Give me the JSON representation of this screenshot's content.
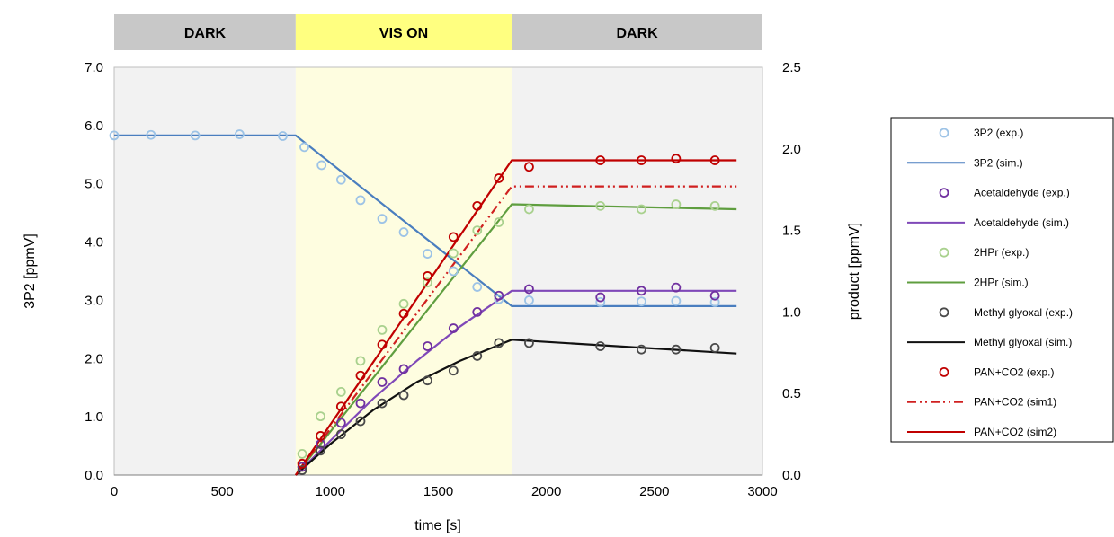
{
  "chart_data": {
    "type": "line",
    "bands": [
      {
        "label": "DARK",
        "from": 0,
        "to": 840,
        "color": "#c8c8c8",
        "bg": "#f2f2f2"
      },
      {
        "label": "VIS ON",
        "from": 840,
        "to": 1840,
        "color": "#ffff80",
        "bg": "#fefde0"
      },
      {
        "label": "DARK",
        "from": 1840,
        "to": 3000,
        "color": "#c8c8c8",
        "bg": "#f2f2f2"
      }
    ],
    "xlabel": "time [s]",
    "ylabel_left": "3P2 [ppmV]",
    "ylabel_right": "product [ppmV]",
    "xlim": [
      0,
      3000
    ],
    "ylim_left": [
      0,
      7
    ],
    "ylim_right": [
      0,
      2.5
    ],
    "xticks": [
      "0",
      "500",
      "1000",
      "1500",
      "2000",
      "2500",
      "3000"
    ],
    "yticks_left": [
      "0.0",
      "1.0",
      "2.0",
      "3.0",
      "4.0",
      "5.0",
      "6.0",
      "7.0"
    ],
    "yticks_right": [
      "0.0",
      "0.5",
      "1.0",
      "1.5",
      "2.0",
      "2.5"
    ],
    "legend_position": "right",
    "series": [
      {
        "name": "3P2 (exp.)",
        "kind": "marker",
        "axis": "left",
        "color": "#9dc3e6",
        "x": [
          0,
          170,
          375,
          580,
          780,
          880,
          960,
          1050,
          1140,
          1240,
          1340,
          1450,
          1570,
          1680,
          1780,
          1920,
          2250,
          2440,
          2600,
          2780
        ],
        "y": [
          5.83,
          5.84,
          5.83,
          5.85,
          5.82,
          5.63,
          5.32,
          5.07,
          4.72,
          4.4,
          4.17,
          3.8,
          3.5,
          3.23,
          3.02,
          3.0,
          2.97,
          2.98,
          2.99,
          2.97
        ]
      },
      {
        "name": "3P2 (sim.)",
        "kind": "line",
        "dash": "",
        "axis": "left",
        "color": "#4a7ebf",
        "x": [
          0,
          840,
          1840,
          2880
        ],
        "y": [
          5.83,
          5.83,
          2.9,
          2.9
        ]
      },
      {
        "name": "Acetaldehyde (exp.)",
        "kind": "marker",
        "axis": "right",
        "color": "#7030a0",
        "x": [
          870,
          955,
          1050,
          1140,
          1240,
          1340,
          1450,
          1570,
          1680,
          1780,
          1920,
          2250,
          2440,
          2600,
          2780
        ],
        "y": [
          0.05,
          0.19,
          0.32,
          0.44,
          0.57,
          0.65,
          0.79,
          0.9,
          1.0,
          1.1,
          1.14,
          1.09,
          1.13,
          1.15,
          1.1
        ]
      },
      {
        "name": "Acetaldehyde (sim.)",
        "kind": "line",
        "dash": "",
        "axis": "right",
        "color": "#7f48b8",
        "x": [
          840,
          1000,
          1200,
          1400,
          1600,
          1840,
          2880
        ],
        "y": [
          0.0,
          0.21,
          0.47,
          0.7,
          0.91,
          1.13,
          1.13
        ]
      },
      {
        "name": "2HPr (exp.)",
        "kind": "marker",
        "axis": "right",
        "color": "#a9d18e",
        "x": [
          870,
          955,
          1050,
          1140,
          1240,
          1340,
          1450,
          1570,
          1680,
          1780,
          1920,
          2250,
          2440,
          2600,
          2780
        ],
        "y": [
          0.13,
          0.36,
          0.51,
          0.7,
          0.89,
          1.05,
          1.18,
          1.36,
          1.5,
          1.55,
          1.63,
          1.65,
          1.63,
          1.66,
          1.65
        ]
      },
      {
        "name": "2HPr (sim.)",
        "kind": "line",
        "dash": "",
        "axis": "right",
        "color": "#5f9e3f",
        "x": [
          840,
          1840,
          2880
        ],
        "y": [
          0.0,
          1.66,
          1.63
        ]
      },
      {
        "name": "Methyl glyoxal (exp.)",
        "kind": "marker",
        "axis": "right",
        "color": "#4a4a4a",
        "x": [
          870,
          955,
          1050,
          1140,
          1240,
          1340,
          1450,
          1570,
          1680,
          1780,
          1920,
          2250,
          2440,
          2600,
          2780
        ],
        "y": [
          0.03,
          0.15,
          0.25,
          0.33,
          0.44,
          0.49,
          0.58,
          0.64,
          0.73,
          0.81,
          0.81,
          0.79,
          0.77,
          0.77,
          0.78
        ]
      },
      {
        "name": "Methyl glyoxal (sim.)",
        "kind": "line",
        "dash": "",
        "axis": "right",
        "color": "#111111",
        "x": [
          840,
          1000,
          1200,
          1400,
          1600,
          1840,
          2880
        ],
        "y": [
          0.0,
          0.19,
          0.4,
          0.57,
          0.7,
          0.83,
          0.745
        ]
      },
      {
        "name": "PAN+CO2 (exp.)",
        "kind": "marker",
        "axis": "right",
        "color": "#c00000",
        "x": [
          870,
          955,
          1050,
          1140,
          1240,
          1340,
          1450,
          1570,
          1680,
          1780,
          1920,
          2250,
          2440,
          2600,
          2780
        ],
        "y": [
          0.07,
          0.24,
          0.42,
          0.61,
          0.8,
          0.99,
          1.22,
          1.46,
          1.65,
          1.82,
          1.89,
          1.93,
          1.93,
          1.94,
          1.93
        ]
      },
      {
        "name": "PAN+CO2 (sim1)",
        "kind": "line",
        "dash": "10 4 2 4 2 4",
        "axis": "right",
        "color": "#d02020",
        "x": [
          840,
          1840,
          2880
        ],
        "y": [
          0.0,
          1.77,
          1.77
        ]
      },
      {
        "name": "PAN+CO2 (sim2)",
        "kind": "line",
        "dash": "",
        "axis": "right",
        "color": "#c00000",
        "x": [
          840,
          1840,
          2880
        ],
        "y": [
          0.0,
          1.93,
          1.93
        ]
      }
    ]
  }
}
